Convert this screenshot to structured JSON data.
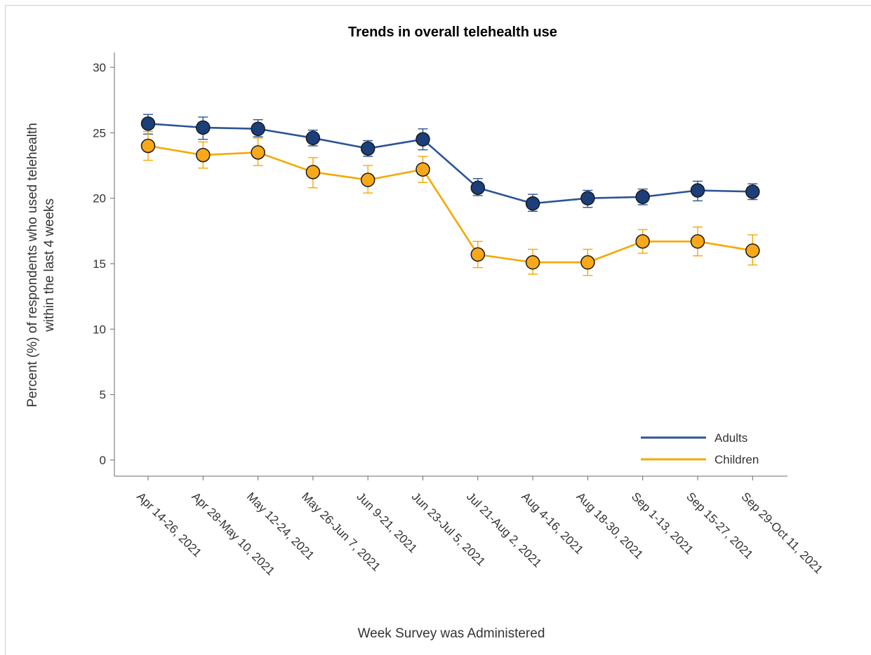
{
  "chart_data": {
    "type": "line",
    "title": "Trends in overall telehealth use",
    "xlabel": "Week Survey was Administered",
    "ylabel": [
      "Percent (%) of respondents who used telehealth",
      "within the last 4 weeks"
    ],
    "ylim": [
      0,
      30
    ],
    "yticks": [
      0,
      5,
      10,
      15,
      20,
      25,
      30
    ],
    "categories": [
      "Apr 14-26, 2021",
      "Apr 28-May 10, 2021",
      "May 12-24, 2021",
      "May 26-Jun 7, 2021",
      "Jun 9-21, 2021",
      "Jun 23-Jul 5, 2021",
      "Jul 21-Aug 2, 2021",
      "Aug 4-16, 2021",
      "Aug 18-30, 2021",
      "Sep 1-13, 2021",
      "Sep 15-27, 2021",
      "Sep 29-Oct 11, 2021"
    ],
    "grid": false,
    "legend_position": "bottom-right",
    "series": [
      {
        "name": "Adults",
        "color": "#2b5597",
        "marker_fill": "#1c3f7a",
        "values": [
          25.7,
          25.4,
          25.3,
          24.6,
          23.8,
          24.5,
          20.8,
          19.6,
          20.0,
          20.1,
          20.6,
          20.5
        ],
        "lower": [
          24.9,
          24.5,
          24.7,
          24.0,
          23.2,
          23.7,
          20.2,
          19.0,
          19.3,
          19.5,
          19.8,
          19.9
        ],
        "upper": [
          26.4,
          26.2,
          26.0,
          25.2,
          24.4,
          25.3,
          21.5,
          20.3,
          20.6,
          20.7,
          21.3,
          21.1
        ]
      },
      {
        "name": "Children",
        "color": "#f5a800",
        "marker_fill": "#f7a81b",
        "values": [
          24.0,
          23.3,
          23.5,
          22.0,
          21.4,
          22.2,
          15.7,
          15.1,
          15.1,
          16.7,
          16.7,
          16.0
        ],
        "lower": [
          22.9,
          22.3,
          22.5,
          20.8,
          20.4,
          21.2,
          14.7,
          14.2,
          14.1,
          15.8,
          15.6,
          14.9
        ],
        "upper": [
          25.1,
          24.3,
          24.6,
          23.1,
          22.5,
          23.2,
          16.7,
          16.1,
          16.1,
          17.6,
          17.8,
          17.2
        ]
      }
    ]
  }
}
